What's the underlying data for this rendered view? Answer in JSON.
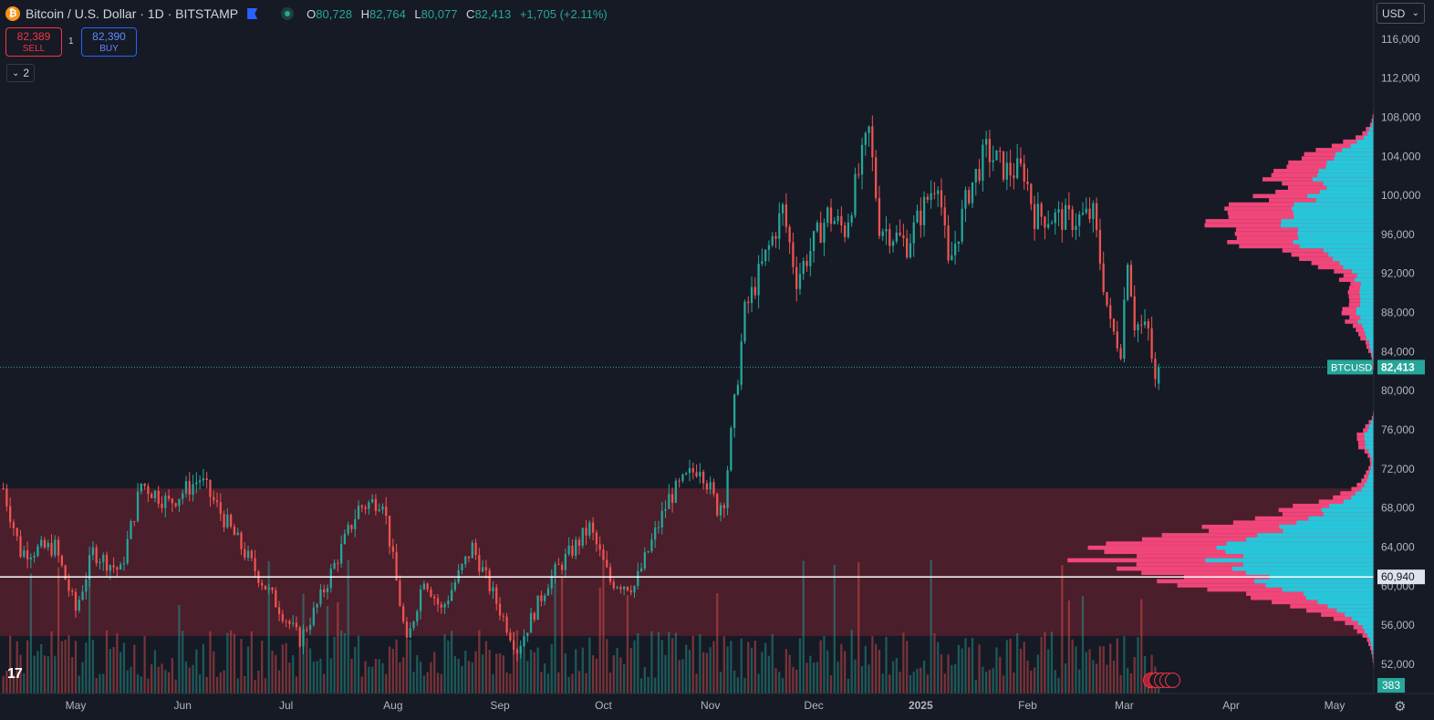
{
  "header": {
    "symbol_title": "Bitcoin / U.S. Dollar · 1D · BITSTAMP",
    "coin_glyph": "₿",
    "ohlc": {
      "o_label": "O",
      "o": "80,728",
      "h_label": "H",
      "h": "82,764",
      "l_label": "L",
      "l": "80,077",
      "c_label": "C",
      "c": "82,413",
      "change": "+1,705 (+2.11%)"
    }
  },
  "trade": {
    "sell_price": "82,389",
    "sell_label": "SELL",
    "spread": "1",
    "buy_price": "82,390",
    "buy_label": "BUY"
  },
  "indicators_toggle": {
    "count": "2",
    "icon": "chevron-down-icon"
  },
  "currency_selector": {
    "value": "USD"
  },
  "colors": {
    "up": "#26a69a",
    "down": "#ef5350",
    "range_fill": "#4a1e2b",
    "vp_up": "#26c6da",
    "vp_down": "#f0467a",
    "bg": "#161a25"
  },
  "chart_data": {
    "type": "candlestick",
    "symbol": "BTCUSD",
    "exchange": "BITSTAMP",
    "interval": "1D",
    "ylim": [
      49000,
      120000
    ],
    "y_ticks": [
      52000,
      56000,
      60000,
      64000,
      68000,
      72000,
      76000,
      80000,
      84000,
      88000,
      92000,
      96000,
      100000,
      104000,
      108000,
      112000,
      116000
    ],
    "y_tick_labels": [
      "52,000",
      "56,000",
      "60,000",
      "64,000",
      "68,000",
      "72,000",
      "76,000",
      "80,000",
      "84,000",
      "88,000",
      "92,000",
      "96,000",
      "100,000",
      "104,000",
      "108,000",
      "112,000",
      "116,000"
    ],
    "x_tick_labels": [
      {
        "label": "May",
        "date": "2024-05-01"
      },
      {
        "label": "Jun",
        "date": "2024-06-01"
      },
      {
        "label": "Jul",
        "date": "2024-07-01"
      },
      {
        "label": "Aug",
        "date": "2024-08-01"
      },
      {
        "label": "Sep",
        "date": "2024-09-01"
      },
      {
        "label": "Oct",
        "date": "2024-10-01"
      },
      {
        "label": "Nov",
        "date": "2024-11-01"
      },
      {
        "label": "Dec",
        "date": "2024-12-01"
      },
      {
        "label": "2025",
        "date": "2025-01-01"
      },
      {
        "label": "Feb",
        "date": "2025-02-01"
      },
      {
        "label": "Mar",
        "date": "2025-03-01"
      },
      {
        "label": "Apr",
        "date": "2025-04-01"
      },
      {
        "label": "May",
        "date": "2025-05-01"
      }
    ],
    "price_path": [
      [
        "2024-04-10",
        70000
      ],
      [
        "2024-04-15",
        63500
      ],
      [
        "2024-04-25",
        64000
      ],
      [
        "2024-05-01",
        57500
      ],
      [
        "2024-05-06",
        63500
      ],
      [
        "2024-05-14",
        61500
      ],
      [
        "2024-05-20",
        70500
      ],
      [
        "2024-05-28",
        68500
      ],
      [
        "2024-06-06",
        71000
      ],
      [
        "2024-06-12",
        67500
      ],
      [
        "2024-06-24",
        60500
      ],
      [
        "2024-07-05",
        54500
      ],
      [
        "2024-07-10",
        58000
      ],
      [
        "2024-07-22",
        68000
      ],
      [
        "2024-07-29",
        69000
      ],
      [
        "2024-08-05",
        54000
      ],
      [
        "2024-08-10",
        61000
      ],
      [
        "2024-08-15",
        57500
      ],
      [
        "2024-08-24",
        64000
      ],
      [
        "2024-09-06",
        53500
      ],
      [
        "2024-09-15",
        60500
      ],
      [
        "2024-09-27",
        66000
      ],
      [
        "2024-10-03",
        60500
      ],
      [
        "2024-10-10",
        60000
      ],
      [
        "2024-10-20",
        69000
      ],
      [
        "2024-10-29",
        72500
      ],
      [
        "2024-11-03",
        68000
      ],
      [
        "2024-11-05",
        69000
      ],
      [
        "2024-11-11",
        88000
      ],
      [
        "2024-11-22",
        98500
      ],
      [
        "2024-11-26",
        91500
      ],
      [
        "2024-12-05",
        98000
      ],
      [
        "2024-12-10",
        96500
      ],
      [
        "2024-12-17",
        106500
      ],
      [
        "2024-12-20",
        97000
      ],
      [
        "2024-12-28",
        95000
      ],
      [
        "2025-01-06",
        102000
      ],
      [
        "2025-01-09",
        92500
      ],
      [
        "2025-01-15",
        100500
      ],
      [
        "2025-01-20",
        104500
      ],
      [
        "2025-01-26",
        102500
      ],
      [
        "2025-01-31",
        102500
      ],
      [
        "2025-02-03",
        98000
      ],
      [
        "2025-02-14",
        97500
      ],
      [
        "2025-02-20",
        98000
      ],
      [
        "2025-02-25",
        86500
      ],
      [
        "2025-02-28",
        84500
      ],
      [
        "2025-03-02",
        94000
      ],
      [
        "2025-03-04",
        87000
      ],
      [
        "2025-03-08",
        86000
      ],
      [
        "2025-03-10",
        80700
      ],
      [
        "2025-03-11",
        82413
      ]
    ],
    "last_candle": {
      "open": 80728,
      "high": 82764,
      "low": 80077,
      "close": 82413
    },
    "last_price_label": "82,413",
    "last_price_symbol_label": "BTCUSD",
    "horizontal_line": {
      "value": 60940,
      "label": "60,940"
    },
    "range_box": {
      "from": 54900,
      "to": 70000
    },
    "volume_label": "383",
    "volume_profile": true,
    "grid": false
  },
  "footer": {
    "logo_text": "17"
  }
}
